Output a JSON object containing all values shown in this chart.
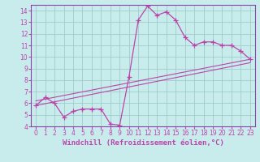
{
  "xlabel": "Windchill (Refroidissement éolien,°C)",
  "background_color": "#c8ecec",
  "grid_color": "#a0cccc",
  "line_color": "#bb44aa",
  "spine_color": "#8844aa",
  "xlim": [
    -0.5,
    23.5
  ],
  "ylim": [
    4,
    14.5
  ],
  "xticks": [
    0,
    1,
    2,
    3,
    4,
    5,
    6,
    7,
    8,
    9,
    10,
    11,
    12,
    13,
    14,
    15,
    16,
    17,
    18,
    19,
    20,
    21,
    22,
    23
  ],
  "yticks": [
    4,
    5,
    6,
    7,
    8,
    9,
    10,
    11,
    12,
    13,
    14
  ],
  "line1_x": [
    0,
    1,
    2,
    3,
    4,
    5,
    6,
    7,
    8,
    9,
    10,
    11,
    12,
    13,
    14,
    15,
    16,
    17,
    18,
    19,
    20,
    21,
    22,
    23
  ],
  "line1_y": [
    5.8,
    6.5,
    6.0,
    4.8,
    5.3,
    5.5,
    5.5,
    5.5,
    4.2,
    4.1,
    8.3,
    13.2,
    14.4,
    13.6,
    13.9,
    13.2,
    11.7,
    11.0,
    11.3,
    11.3,
    11.0,
    11.0,
    10.5,
    9.8
  ],
  "line2_x": [
    0,
    23
  ],
  "line2_y": [
    5.8,
    9.5
  ],
  "line3_x": [
    0,
    23
  ],
  "line3_y": [
    6.2,
    9.8
  ],
  "marker_size": 4,
  "tick_fontsize": 5.5,
  "label_fontsize": 6.5
}
